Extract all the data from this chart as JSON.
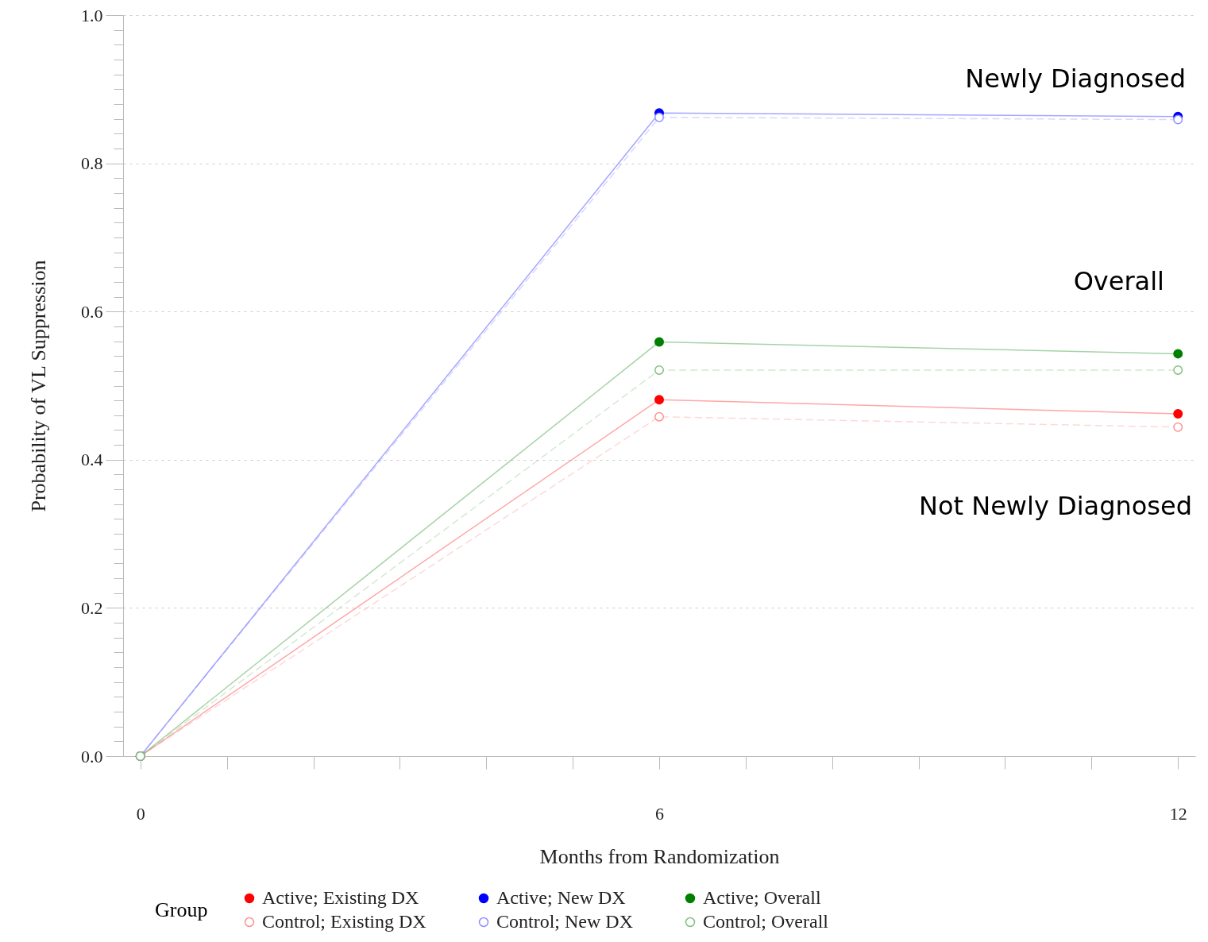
{
  "chart_data": {
    "type": "line",
    "xlabel": "Months from Randomization",
    "ylabel": "Probability of VL Suppression",
    "legend_title": "Group",
    "x": [
      0,
      6,
      12
    ],
    "series": [
      {
        "name": "Active; Existing DX",
        "color": "#ff0000",
        "values": [
          0,
          0.481,
          0.462
        ],
        "line_style": "solid"
      },
      {
        "name": "Active; New DX",
        "color": "#0000ff",
        "values": [
          0,
          0.868,
          0.863
        ],
        "line_style": "solid"
      },
      {
        "name": "Active; Overall",
        "color": "#008000",
        "values": [
          0,
          0.559,
          0.543
        ],
        "line_style": "solid"
      },
      {
        "name": "Control; Existing DX",
        "color": "#ff9090",
        "values": [
          0,
          0.458,
          0.444
        ],
        "line_style": "dashed"
      },
      {
        "name": "Control; New DX",
        "color": "#9090ff",
        "values": [
          0,
          0.862,
          0.859
        ],
        "line_style": "dashed"
      },
      {
        "name": "Control; Overall",
        "color": "#80c080",
        "values": [
          0,
          0.521,
          0.521
        ],
        "line_style": "dashed"
      }
    ],
    "marker": "circle",
    "grid": "y",
    "legend": "bottom",
    "xlim": [
      -0.2,
      12.2
    ],
    "xticks": [
      0,
      {
        "value": 1,
        "label": null
      },
      {
        "value": 2,
        "label": null
      },
      {
        "value": 3,
        "label": null
      },
      {
        "value": 4,
        "label": null
      },
      {
        "value": 5,
        "label": null
      },
      6,
      {
        "value": 7,
        "label": null
      },
      {
        "value": 8,
        "label": null
      },
      {
        "value": 9,
        "label": null
      },
      {
        "value": 10,
        "label": null
      },
      {
        "value": 11,
        "label": null
      },
      12
    ],
    "ylim": [
      0,
      1
    ],
    "yticks": [
      {
        "value": 0,
        "label": "0.0"
      },
      {
        "value": 0.02,
        "label": null
      },
      {
        "value": 0.04,
        "label": null
      },
      {
        "value": 0.06,
        "label": null
      },
      {
        "value": 0.08,
        "label": null
      },
      {
        "value": 0.1,
        "label": null
      },
      {
        "value": 0.12,
        "label": null
      },
      {
        "value": 0.14,
        "label": null
      },
      {
        "value": 0.16,
        "label": null
      },
      {
        "value": 0.18,
        "label": null
      },
      {
        "value": 0.2,
        "label": "0.2"
      },
      {
        "value": 0.22,
        "label": null
      },
      {
        "value": 0.24,
        "label": null
      },
      {
        "value": 0.26,
        "label": null
      },
      {
        "value": 0.28,
        "label": null
      },
      {
        "value": 0.3,
        "label": null
      },
      {
        "value": 0.32,
        "label": null
      },
      {
        "value": 0.34,
        "label": null
      },
      {
        "value": 0.36,
        "label": null
      },
      {
        "value": 0.38,
        "label": null
      },
      {
        "value": 0.4,
        "label": "0.4"
      },
      {
        "value": 0.42,
        "label": null
      },
      {
        "value": 0.44,
        "label": null
      },
      {
        "value": 0.46,
        "label": null
      },
      {
        "value": 0.48,
        "label": null
      },
      {
        "value": 0.5,
        "label": null
      },
      {
        "value": 0.52,
        "label": null
      },
      {
        "value": 0.54,
        "label": null
      },
      {
        "value": 0.56,
        "label": null
      },
      {
        "value": 0.58,
        "label": null
      },
      {
        "value": 0.6,
        "label": "0.6"
      },
      {
        "value": 0.62,
        "label": null
      },
      {
        "value": 0.64,
        "label": null
      },
      {
        "value": 0.66,
        "label": null
      },
      {
        "value": 0.68,
        "label": null
      },
      {
        "value": 0.7,
        "label": null
      },
      {
        "value": 0.72,
        "label": null
      },
      {
        "value": 0.74,
        "label": null
      },
      {
        "value": 0.76,
        "label": null
      },
      {
        "value": 0.78,
        "label": null
      },
      {
        "value": 0.8,
        "label": "0.8"
      },
      {
        "value": 0.82,
        "label": null
      },
      {
        "value": 0.84,
        "label": null
      },
      {
        "value": 0.86,
        "label": null
      },
      {
        "value": 0.88,
        "label": null
      },
      {
        "value": 0.9,
        "label": null
      },
      {
        "value": 0.92,
        "label": null
      },
      {
        "value": 0.94,
        "label": null
      },
      {
        "value": 0.96,
        "label": null
      },
      {
        "value": 0.98,
        "label": null
      },
      {
        "value": 1,
        "label": "1.0"
      }
    ],
    "annotations": [
      "Newly Diagnosed",
      "Overall",
      "Not Newly Diagnosed"
    ]
  }
}
